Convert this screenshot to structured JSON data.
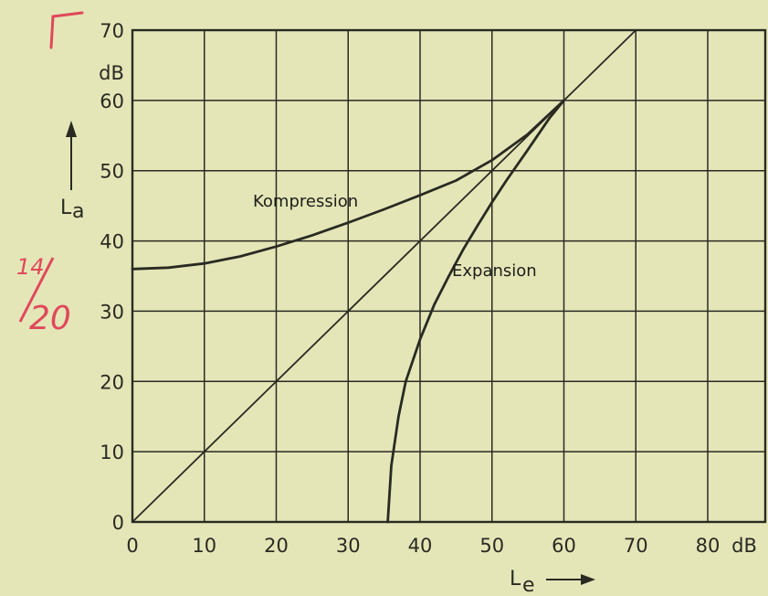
{
  "chart_data": {
    "type": "line",
    "xlabel": "Le",
    "ylabel": "La",
    "x_unit": "dB",
    "y_unit": "dB",
    "xlim": [
      0,
      88
    ],
    "ylim": [
      0,
      70
    ],
    "x_ticks": [
      "0",
      "10",
      "20",
      "30",
      "40",
      "50",
      "60",
      "70",
      "80"
    ],
    "y_ticks": [
      "0",
      "10",
      "20",
      "30",
      "40",
      "50",
      "60",
      "70"
    ],
    "grid": true,
    "series": [
      {
        "name": "",
        "x": [
          0,
          70
        ],
        "y": [
          0,
          70
        ]
      },
      {
        "name": "Kompression",
        "x": [
          0,
          5,
          10,
          15,
          20,
          25,
          30,
          35,
          40,
          45,
          50,
          55,
          60
        ],
        "y": [
          36,
          36.2,
          36.8,
          37.8,
          39.2,
          40.8,
          42.6,
          44.5,
          46.5,
          48.6,
          51.5,
          55.2,
          60
        ]
      },
      {
        "name": "Expansion",
        "x": [
          35.5,
          36,
          37,
          38,
          40,
          42,
          44,
          46,
          48,
          50,
          52,
          55,
          58,
          60
        ],
        "y": [
          0,
          8,
          15,
          20,
          26,
          31,
          35,
          38.8,
          42.2,
          45.5,
          48.6,
          53,
          57.5,
          60
        ]
      }
    ],
    "annotations": [
      "Kompression",
      "Expansion"
    ]
  },
  "labels": {
    "y_unit": "dB",
    "x_unit": "dB",
    "ylabel_main": "L",
    "ylabel_sub": "a",
    "xlabel_main": "L",
    "xlabel_sub": "e",
    "curve_kompression": "Kompression",
    "curve_expansion": "Expansion"
  },
  "handwriting": {
    "top": "14",
    "bottom": "20",
    "color": "#e0485a"
  },
  "colors": {
    "paper": "#e4e6b8",
    "ink": "#2a2a22"
  }
}
